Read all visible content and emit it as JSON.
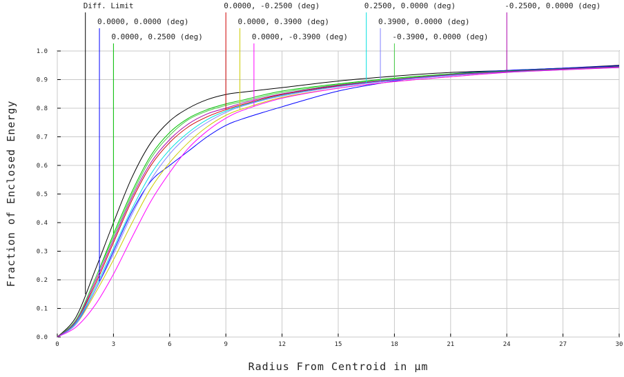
{
  "chart_data": {
    "type": "line",
    "xlabel": "Radius From Centroid in µm",
    "ylabel": "Fraction of Enclosed Energy",
    "xlim": [
      0,
      30
    ],
    "ylim": [
      0,
      1.0
    ],
    "x_ticks": [
      "0",
      "3",
      "6",
      "9",
      "12",
      "15",
      "18",
      "21",
      "24",
      "27",
      "30"
    ],
    "y_ticks": [
      "0.0",
      "0.1",
      "0.2",
      "0.3",
      "0.4",
      "0.5",
      "0.6",
      "0.7",
      "0.8",
      "0.9",
      "1.0"
    ],
    "grid": true,
    "series": [
      {
        "name": "Diff. Limit",
        "color": "#000000",
        "label_x": 1.5,
        "x": [
          0,
          1,
          2,
          3,
          4,
          5,
          6,
          7,
          8,
          9,
          10,
          12,
          15,
          18,
          21,
          24,
          27,
          30
        ],
        "y": [
          0,
          0.07,
          0.23,
          0.4,
          0.56,
          0.68,
          0.755,
          0.8,
          0.83,
          0.848,
          0.857,
          0.872,
          0.895,
          0.912,
          0.925,
          0.932,
          0.94,
          0.95
        ]
      },
      {
        "name": "0.0000, 0.0000 (deg)",
        "color": "#0000ff",
        "label_x": 2.25,
        "x": [
          0,
          1,
          2,
          3,
          4,
          5,
          6,
          7,
          8,
          9,
          10,
          12,
          15,
          18,
          21,
          24,
          27,
          30
        ],
        "y": [
          0,
          0.05,
          0.16,
          0.3,
          0.44,
          0.545,
          0.6,
          0.65,
          0.7,
          0.74,
          0.765,
          0.805,
          0.86,
          0.895,
          0.92,
          0.932,
          0.94,
          0.948
        ]
      },
      {
        "name": "0.0000, 0.2500 (deg)",
        "color": "#00c000",
        "label_x": 3.0,
        "x": [
          0,
          1,
          2,
          3,
          4,
          5,
          6,
          7,
          8,
          9,
          10,
          12,
          15,
          18,
          21,
          24,
          27,
          30
        ],
        "y": [
          0,
          0.06,
          0.2,
          0.36,
          0.51,
          0.635,
          0.715,
          0.765,
          0.795,
          0.815,
          0.83,
          0.86,
          0.885,
          0.905,
          0.92,
          0.93,
          0.938,
          0.946
        ]
      },
      {
        "name": "0.0000, -0.2500 (deg)",
        "color": "#cc0000",
        "label_x": 9.0,
        "x": [
          0,
          1,
          2,
          3,
          4,
          5,
          6,
          7,
          8,
          9,
          10,
          12,
          15,
          18,
          21,
          24,
          27,
          30
        ],
        "y": [
          0,
          0.055,
          0.18,
          0.33,
          0.48,
          0.6,
          0.68,
          0.735,
          0.77,
          0.795,
          0.815,
          0.848,
          0.878,
          0.9,
          0.916,
          0.928,
          0.936,
          0.944
        ]
      },
      {
        "name": "0.0000, 0.3900 (deg)",
        "color": "#cccc00",
        "label_x": 9.75,
        "x": [
          0,
          1,
          2,
          3,
          4,
          5,
          6,
          7,
          8,
          9,
          10,
          12,
          15,
          18,
          21,
          24,
          27,
          30
        ],
        "y": [
          0,
          0.045,
          0.15,
          0.27,
          0.4,
          0.52,
          0.61,
          0.68,
          0.735,
          0.775,
          0.8,
          0.838,
          0.87,
          0.893,
          0.91,
          0.925,
          0.934,
          0.942
        ]
      },
      {
        "name": "0.0000, -0.3900 (deg)",
        "color": "#ff00ff",
        "label_x": 10.5,
        "x": [
          0,
          1,
          2,
          3,
          4,
          5,
          6,
          7,
          8,
          9,
          10,
          12,
          15,
          18,
          21,
          24,
          27,
          30
        ],
        "y": [
          0,
          0.035,
          0.11,
          0.22,
          0.35,
          0.475,
          0.575,
          0.66,
          0.72,
          0.765,
          0.795,
          0.835,
          0.87,
          0.893,
          0.91,
          0.925,
          0.934,
          0.942
        ]
      },
      {
        "name": "0.2500, 0.0000 (deg)",
        "color": "#00e0e0",
        "label_x": 16.5,
        "x": [
          0,
          1,
          2,
          3,
          4,
          5,
          6,
          7,
          8,
          9,
          10,
          12,
          15,
          18,
          21,
          24,
          27,
          30
        ],
        "y": [
          0,
          0.05,
          0.17,
          0.31,
          0.45,
          0.57,
          0.655,
          0.715,
          0.76,
          0.79,
          0.812,
          0.845,
          0.876,
          0.898,
          0.915,
          0.927,
          0.936,
          0.944
        ]
      },
      {
        "name": "0.3900, 0.0000 (deg)",
        "color": "#8080ff",
        "label_x": 17.25,
        "x": [
          0,
          1,
          2,
          3,
          4,
          5,
          6,
          7,
          8,
          9,
          10,
          12,
          15,
          18,
          21,
          24,
          27,
          30
        ],
        "y": [
          0,
          0.045,
          0.16,
          0.29,
          0.43,
          0.55,
          0.64,
          0.705,
          0.75,
          0.785,
          0.81,
          0.843,
          0.875,
          0.897,
          0.914,
          0.927,
          0.936,
          0.944
        ]
      },
      {
        "name": "-0.3900, 0.0000 (deg)",
        "color": "#44cc44",
        "label_x": 18.0,
        "x": [
          0,
          1,
          2,
          3,
          4,
          5,
          6,
          7,
          8,
          9,
          10,
          12,
          15,
          18,
          21,
          24,
          27,
          30
        ],
        "y": [
          0,
          0.06,
          0.2,
          0.35,
          0.5,
          0.625,
          0.705,
          0.76,
          0.79,
          0.81,
          0.825,
          0.855,
          0.882,
          0.902,
          0.918,
          0.929,
          0.937,
          0.945
        ]
      },
      {
        "name": "-0.2500, 0.0000 (deg)",
        "color": "#aa00aa",
        "label_x": 24.0,
        "x": [
          0,
          1,
          2,
          3,
          4,
          5,
          6,
          7,
          8,
          9,
          10,
          12,
          15,
          18,
          21,
          24,
          27,
          30
        ],
        "y": [
          0,
          0.055,
          0.19,
          0.34,
          0.49,
          0.61,
          0.69,
          0.745,
          0.78,
          0.8,
          0.82,
          0.85,
          0.88,
          0.9,
          0.917,
          0.928,
          0.937,
          0.945
        ]
      }
    ]
  }
}
